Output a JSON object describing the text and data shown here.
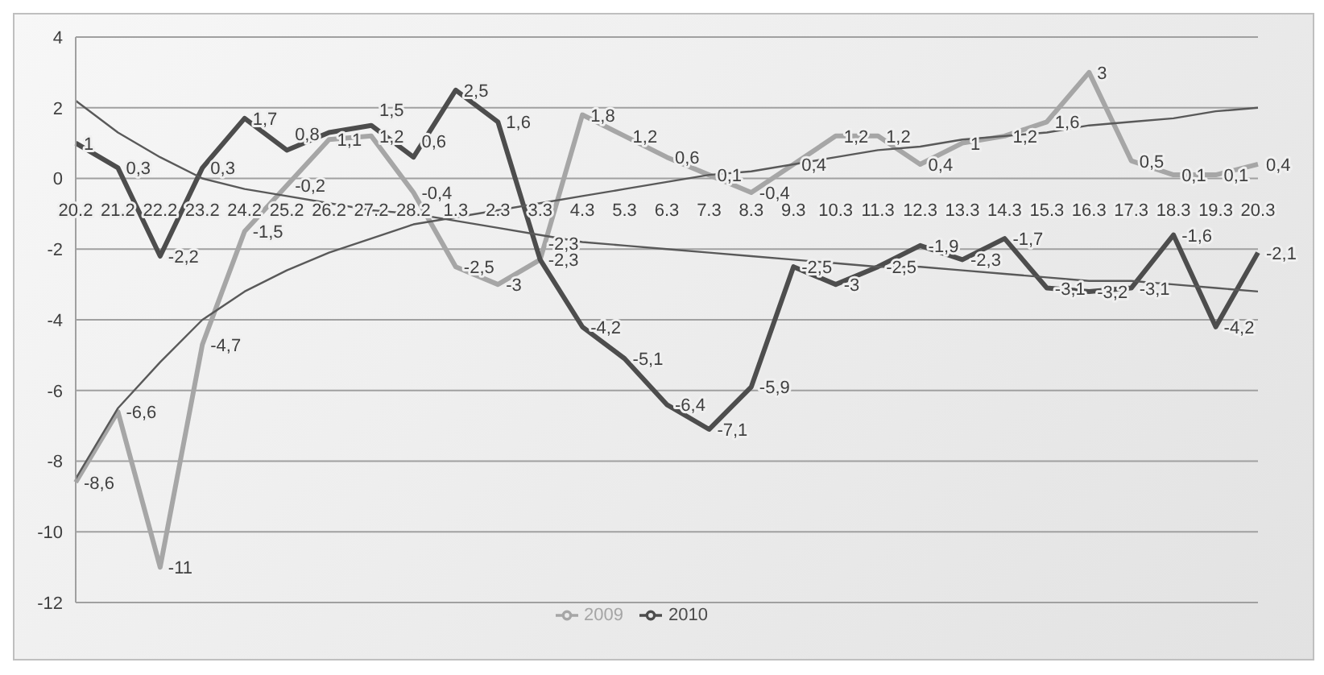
{
  "chart_data": {
    "type": "line",
    "categories": [
      "20.2",
      "21.2",
      "22.2",
      "23.2",
      "24.2",
      "25.2",
      "26.2",
      "27.2",
      "28.2",
      "1.3",
      "2.3",
      "3.3",
      "4.3",
      "5.3",
      "6.3",
      "7.3",
      "8.3",
      "9.3",
      "10.3",
      "11.3",
      "12.3",
      "13.3",
      "14.3",
      "15.3",
      "16.3",
      "17.3",
      "18.3",
      "19.3",
      "20.3"
    ],
    "series": [
      {
        "name": "2009",
        "color": "#a6a6a6",
        "values": [
          -8.6,
          -6.6,
          -11,
          -4.7,
          -1.5,
          -0.2,
          1.1,
          1.2,
          -0.4,
          -2.5,
          -3,
          -2.3,
          1.8,
          1.2,
          0.6,
          0.1,
          -0.4,
          0.4,
          1.2,
          1.2,
          0.4,
          1,
          1.2,
          1.6,
          3,
          0.5,
          0.1,
          0.1,
          0.4
        ],
        "value_labels": [
          "-8,6",
          "-6,6",
          "-11",
          "-4,7",
          "-1,5",
          "-0,2",
          "1,1",
          "1,2",
          "-0,4",
          "-2,5",
          "-3",
          "-2,3",
          "1,8",
          "1,2",
          "0,6",
          "0,1",
          "-0,4",
          "0,4",
          "1,2",
          "1,2",
          "0,4",
          "1",
          "1,2",
          "1,6",
          "3",
          "0,5",
          "0,1",
          "0,1",
          "0,4"
        ]
      },
      {
        "name": "2010",
        "color": "#4d4d4d",
        "values": [
          1,
          0.3,
          -2.2,
          0.3,
          1.7,
          0.8,
          1.3,
          1.5,
          0.6,
          2.5,
          1.6,
          -2.3,
          -4.2,
          -5.1,
          -6.4,
          -7.1,
          -5.9,
          -2.5,
          -3,
          -2.5,
          -1.9,
          -2.3,
          -1.7,
          -3.1,
          -3.2,
          -3.1,
          -1.6,
          -4.2,
          -2.1
        ],
        "value_labels": [
          "1",
          "0,3",
          "-2,2",
          "0,3",
          "1,7",
          "0,8",
          null,
          "1,5",
          "0,6",
          "2,5",
          "1,6",
          "-2,3",
          "-4,2",
          "-5,1",
          "-6,4",
          "-7,1",
          "-5,9",
          "-2,5",
          "-3",
          "-2,5",
          "-1,9",
          "-2,3",
          "-1,7",
          "-3,1",
          "-3,2",
          "-3,1",
          "-1,6",
          "-4,2",
          "-2,1"
        ]
      },
      {
        "color": "#595959",
        "values": [
          -8.5,
          -6.5,
          -5.2,
          -4.0,
          -3.2,
          -2.6,
          -2.1,
          -1.7,
          -1.3,
          -1.1,
          -0.9,
          -0.7,
          -0.5,
          -0.3,
          -0.1,
          0.1,
          0.2,
          0.4,
          0.6,
          0.8,
          0.9,
          1.1,
          1.2,
          1.3,
          1.5,
          1.6,
          1.7,
          1.9,
          2.0
        ]
      },
      {
        "color": "#595959",
        "values": [
          2.2,
          1.3,
          0.6,
          0.0,
          -0.3,
          -0.5,
          -0.7,
          -0.9,
          -1.0,
          -1.2,
          -1.4,
          -1.6,
          -1.8,
          -1.9,
          -2.0,
          -2.1,
          -2.2,
          -2.3,
          -2.4,
          -2.5,
          -2.5,
          -2.6,
          -2.7,
          -2.8,
          -2.9,
          -2.9,
          -3.0,
          -3.1,
          -3.2
        ]
      }
    ],
    "ylim": [
      -12,
      4
    ],
    "yticks": [
      -12,
      -10,
      -8,
      -6,
      -4,
      -2,
      0,
      2,
      4
    ],
    "grid": "y",
    "legend": "bottom",
    "line_style": "solid"
  }
}
